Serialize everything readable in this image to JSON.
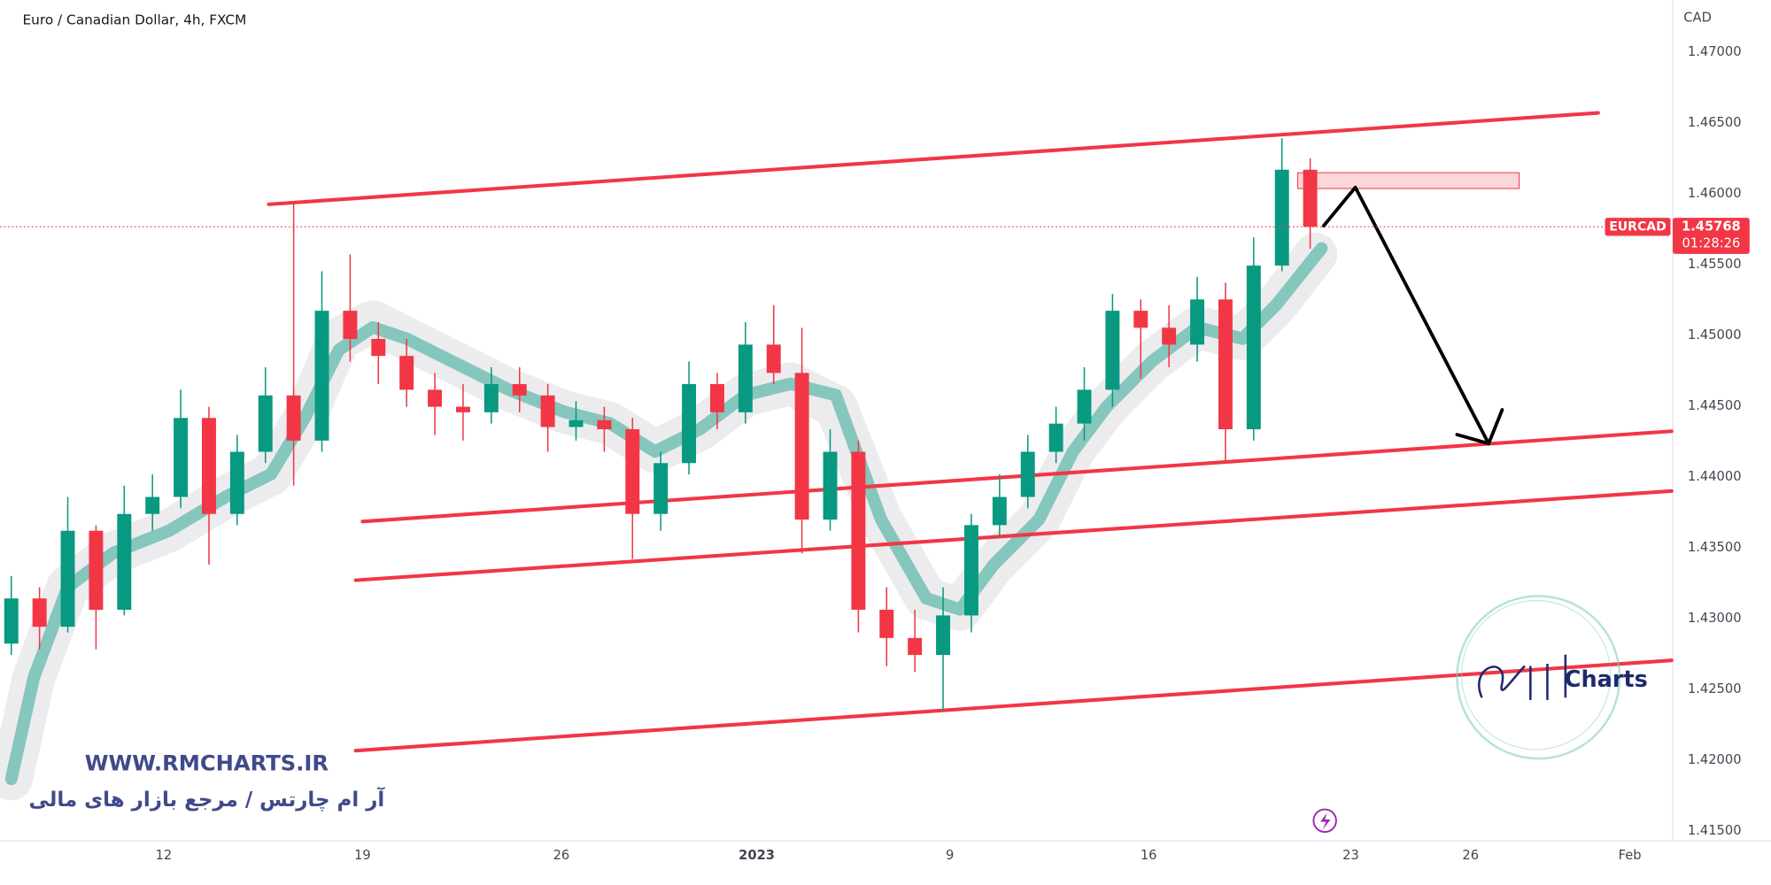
{
  "chart_data": {
    "type": "candlestick",
    "title": "Euro / Canadian Dollar, 4h, FXCM",
    "y_axis_label": "CAD",
    "up_color": "#089981",
    "down_color": "#f23645",
    "open": [
      1.42824,
      1.43143,
      1.42943,
      1.43621,
      1.43063,
      1.4374,
      1.4386,
      1.44418,
      1.4374,
      1.44179,
      1.44577,
      1.44258,
      1.45175,
      1.44976,
      1.44856,
      1.44617,
      1.44497,
      1.44458,
      1.44657,
      1.44577,
      1.44354,
      1.44402,
      1.44338,
      1.4374,
      1.44099,
      1.44657,
      1.44458,
      1.44936,
      1.44736,
      1.437,
      1.44179,
      1.43063,
      1.42864,
      1.42744,
      1.43023,
      1.43661,
      1.4386,
      1.44179,
      1.44378,
      1.44617,
      1.45175,
      1.45055,
      1.44936,
      1.45255,
      1.44338,
      1.45494,
      1.46171
    ],
    "high": [
      1.43302,
      1.43222,
      1.4386,
      1.43661,
      1.4394,
      1.44019,
      1.44617,
      1.44497,
      1.44298,
      1.44776,
      1.45932,
      1.45454,
      1.45573,
      1.45095,
      1.44976,
      1.44736,
      1.44657,
      1.44776,
      1.44776,
      1.44657,
      1.44537,
      1.44497,
      1.44418,
      1.44179,
      1.44816,
      1.44736,
      1.45095,
      1.45215,
      1.45055,
      1.44338,
      1.44258,
      1.43222,
      1.43063,
      1.43222,
      1.4374,
      1.44019,
      1.44298,
      1.44497,
      1.44776,
      1.45294,
      1.45255,
      1.45215,
      1.45414,
      1.45374,
      1.45693,
      1.46394,
      1.46251
    ],
    "low": [
      1.42744,
      1.42784,
      1.42903,
      1.42784,
      1.43023,
      1.43621,
      1.4378,
      1.43382,
      1.43661,
      1.44099,
      1.4394,
      1.44179,
      1.44816,
      1.44657,
      1.44497,
      1.44298,
      1.44258,
      1.44378,
      1.44458,
      1.44179,
      1.44258,
      1.44179,
      1.43421,
      1.43621,
      1.44019,
      1.44338,
      1.44378,
      1.44657,
      1.43461,
      1.43621,
      1.42903,
      1.42664,
      1.42624,
      1.42346,
      1.42903,
      1.43581,
      1.4378,
      1.44099,
      1.44258,
      1.44497,
      1.44697,
      1.44776,
      1.44816,
      1.44099,
      1.44258,
      1.45454,
      1.45613
    ],
    "close": [
      1.43143,
      1.42943,
      1.43621,
      1.43063,
      1.4374,
      1.4386,
      1.44418,
      1.4374,
      1.44179,
      1.44577,
      1.44258,
      1.45175,
      1.44976,
      1.44856,
      1.44617,
      1.44497,
      1.44458,
      1.44657,
      1.44577,
      1.44354,
      1.44402,
      1.44338,
      1.4374,
      1.44099,
      1.44657,
      1.44458,
      1.44936,
      1.44736,
      1.437,
      1.44179,
      1.43063,
      1.42864,
      1.42744,
      1.43023,
      1.43661,
      1.4386,
      1.44179,
      1.44378,
      1.44617,
      1.45175,
      1.45055,
      1.44936,
      1.45255,
      1.44338,
      1.45494,
      1.46171,
      1.45768
    ],
    "ylim": [
      1.4143,
      1.4737
    ],
    "yticks": [
      {
        "value": 1.47,
        "label": "1.47000"
      },
      {
        "value": 1.465,
        "label": "1.46500"
      },
      {
        "value": 1.46,
        "label": "1.46000"
      },
      {
        "value": 1.455,
        "label": "1.45500"
      },
      {
        "value": 1.45,
        "label": "1.45000"
      },
      {
        "value": 1.445,
        "label": "1.44500"
      },
      {
        "value": 1.44,
        "label": "1.44000"
      },
      {
        "value": 1.435,
        "label": "1.43500"
      },
      {
        "value": 1.43,
        "label": "1.43000"
      },
      {
        "value": 1.425,
        "label": "1.42500"
      },
      {
        "value": 1.42,
        "label": "1.42000"
      },
      {
        "value": 1.415,
        "label": "1.41500"
      }
    ],
    "xlim": [
      -0.4,
      58.8
    ],
    "xticks": [
      {
        "value": 5.4,
        "label": "12"
      },
      {
        "value": 12.44,
        "label": "19"
      },
      {
        "value": 19.48,
        "label": "26"
      },
      {
        "value": 26.4,
        "label": "2023"
      },
      {
        "value": 33.24,
        "label": "9"
      },
      {
        "value": 40.28,
        "label": "16"
      },
      {
        "value": 47.44,
        "label": "23"
      },
      {
        "value": 51.68,
        "label": "26"
      },
      {
        "value": 57.32,
        "label": "Feb"
      }
    ],
    "grid": false,
    "last_price": {
      "symbol": "EURCAD",
      "value": 1.45768,
      "countdown": "01:28:26",
      "color": "#f23645"
    }
  },
  "watermark": {
    "url": "WWW.RMCHARTS.IR",
    "tagline": "آر ام چارتس / مرجع بازار های مالی",
    "logo": "Charts"
  }
}
